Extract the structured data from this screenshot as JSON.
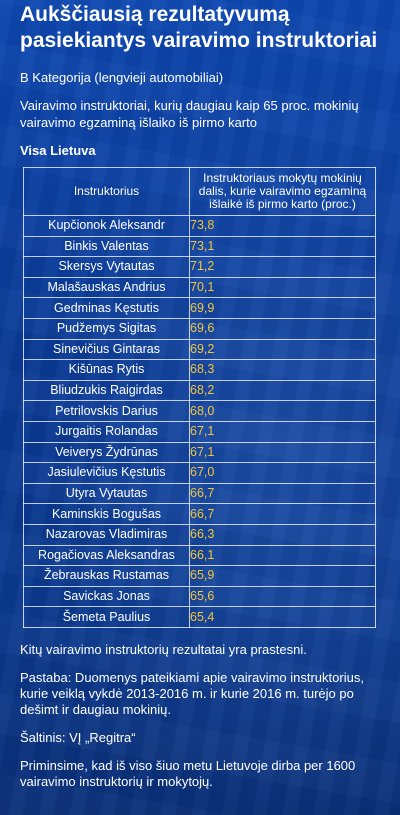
{
  "title": "Aukščiausią rezultatyvumą pasiekiantys vairavimo instruktoriai",
  "category": "B Kategorija (lengvieji automobiliai)",
  "subtitle": "Vairavimo instruktoriai, kurių daugiau kaip 65 proc. mokinių vairavimo egzaminą išlaiko iš pirmo karto",
  "region": "Visa Lietuva",
  "table": {
    "headers": [
      "Instruktorius",
      "Instruktoriaus mokytų mokinių dalis, kurie vairavimo egzaminą išlaikė iš pirmo karto (proc.)"
    ],
    "rows": [
      [
        "Kupčionok Aleksandr",
        "73,8"
      ],
      [
        "Binkis Valentas",
        "73,1"
      ],
      [
        "Skersys Vytautas",
        "71,2"
      ],
      [
        "Malašauskas Andrius",
        "70,1"
      ],
      [
        "Gedminas Kęstutis",
        "69,9"
      ],
      [
        "Pudžemys Sigitas",
        "69,6"
      ],
      [
        "Sinevičius Gintaras",
        "69,2"
      ],
      [
        "Kišūnas Rytis",
        "68,3"
      ],
      [
        "Bliudzukis Raigirdas",
        "68,2"
      ],
      [
        "Petrilovskis Darius",
        "68,0"
      ],
      [
        "Jurgaitis Rolandas",
        "67,1"
      ],
      [
        "Veiverys Žydrūnas",
        "67,1"
      ],
      [
        "Jasiulevičius Kęstutis",
        "67,0"
      ],
      [
        "Utyra Vytautas",
        "66,7"
      ],
      [
        "Kaminskis Bogušas",
        "66,7"
      ],
      [
        "Nazarovas Vladimiras",
        "66,3"
      ],
      [
        "Rogačiovas Aleksandras",
        "66,1"
      ],
      [
        "Žebrauskas Rustamas",
        "65,9"
      ],
      [
        "Savickas Jonas",
        "65,6"
      ],
      [
        "Šemeta Paulius",
        "65,4"
      ]
    ]
  },
  "notes": [
    "Kitų vairavimo instruktorių rezultatai yra prastesni.",
    "Pastaba: Duomenys pateikiami apie vairavimo instruktorius, kurie veiklą vykdė 2013-2016 m. ir kurie 2016 m. turėjo po dešimt ir daugiau mokinių.",
    "Šaltinis: VĮ „Regitra“",
    "Priminsime, kad iš viso šiuo metu Lietuvoje dirba per 1600 vairavimo instruktorių ir mokytojų."
  ],
  "colors": {
    "background": "#0b3f9e",
    "text": "#ffffff",
    "value": "#f2c53b",
    "table_border": "#ffffff"
  }
}
